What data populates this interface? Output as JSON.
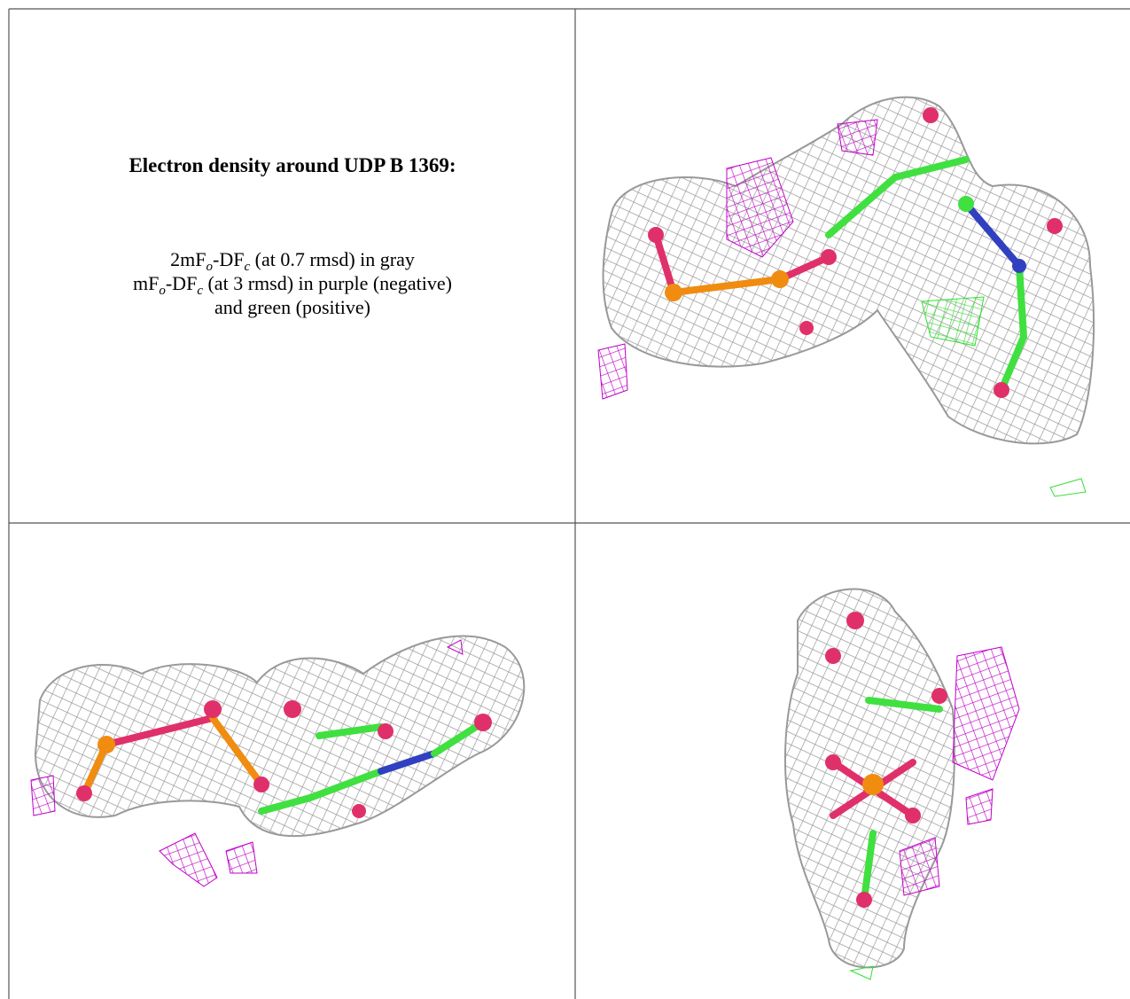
{
  "legend": {
    "title": "Electron density around UDP B 1369:",
    "lines": [
      [
        "2mF",
        "o",
        "-DF",
        "c",
        " (at 0.7 rmsd) in gray"
      ],
      [
        "mF",
        "o",
        "-DF",
        "c",
        " (at 3 rmsd) in purple (negative)"
      ],
      [
        "and green (positive)"
      ]
    ]
  }
}
